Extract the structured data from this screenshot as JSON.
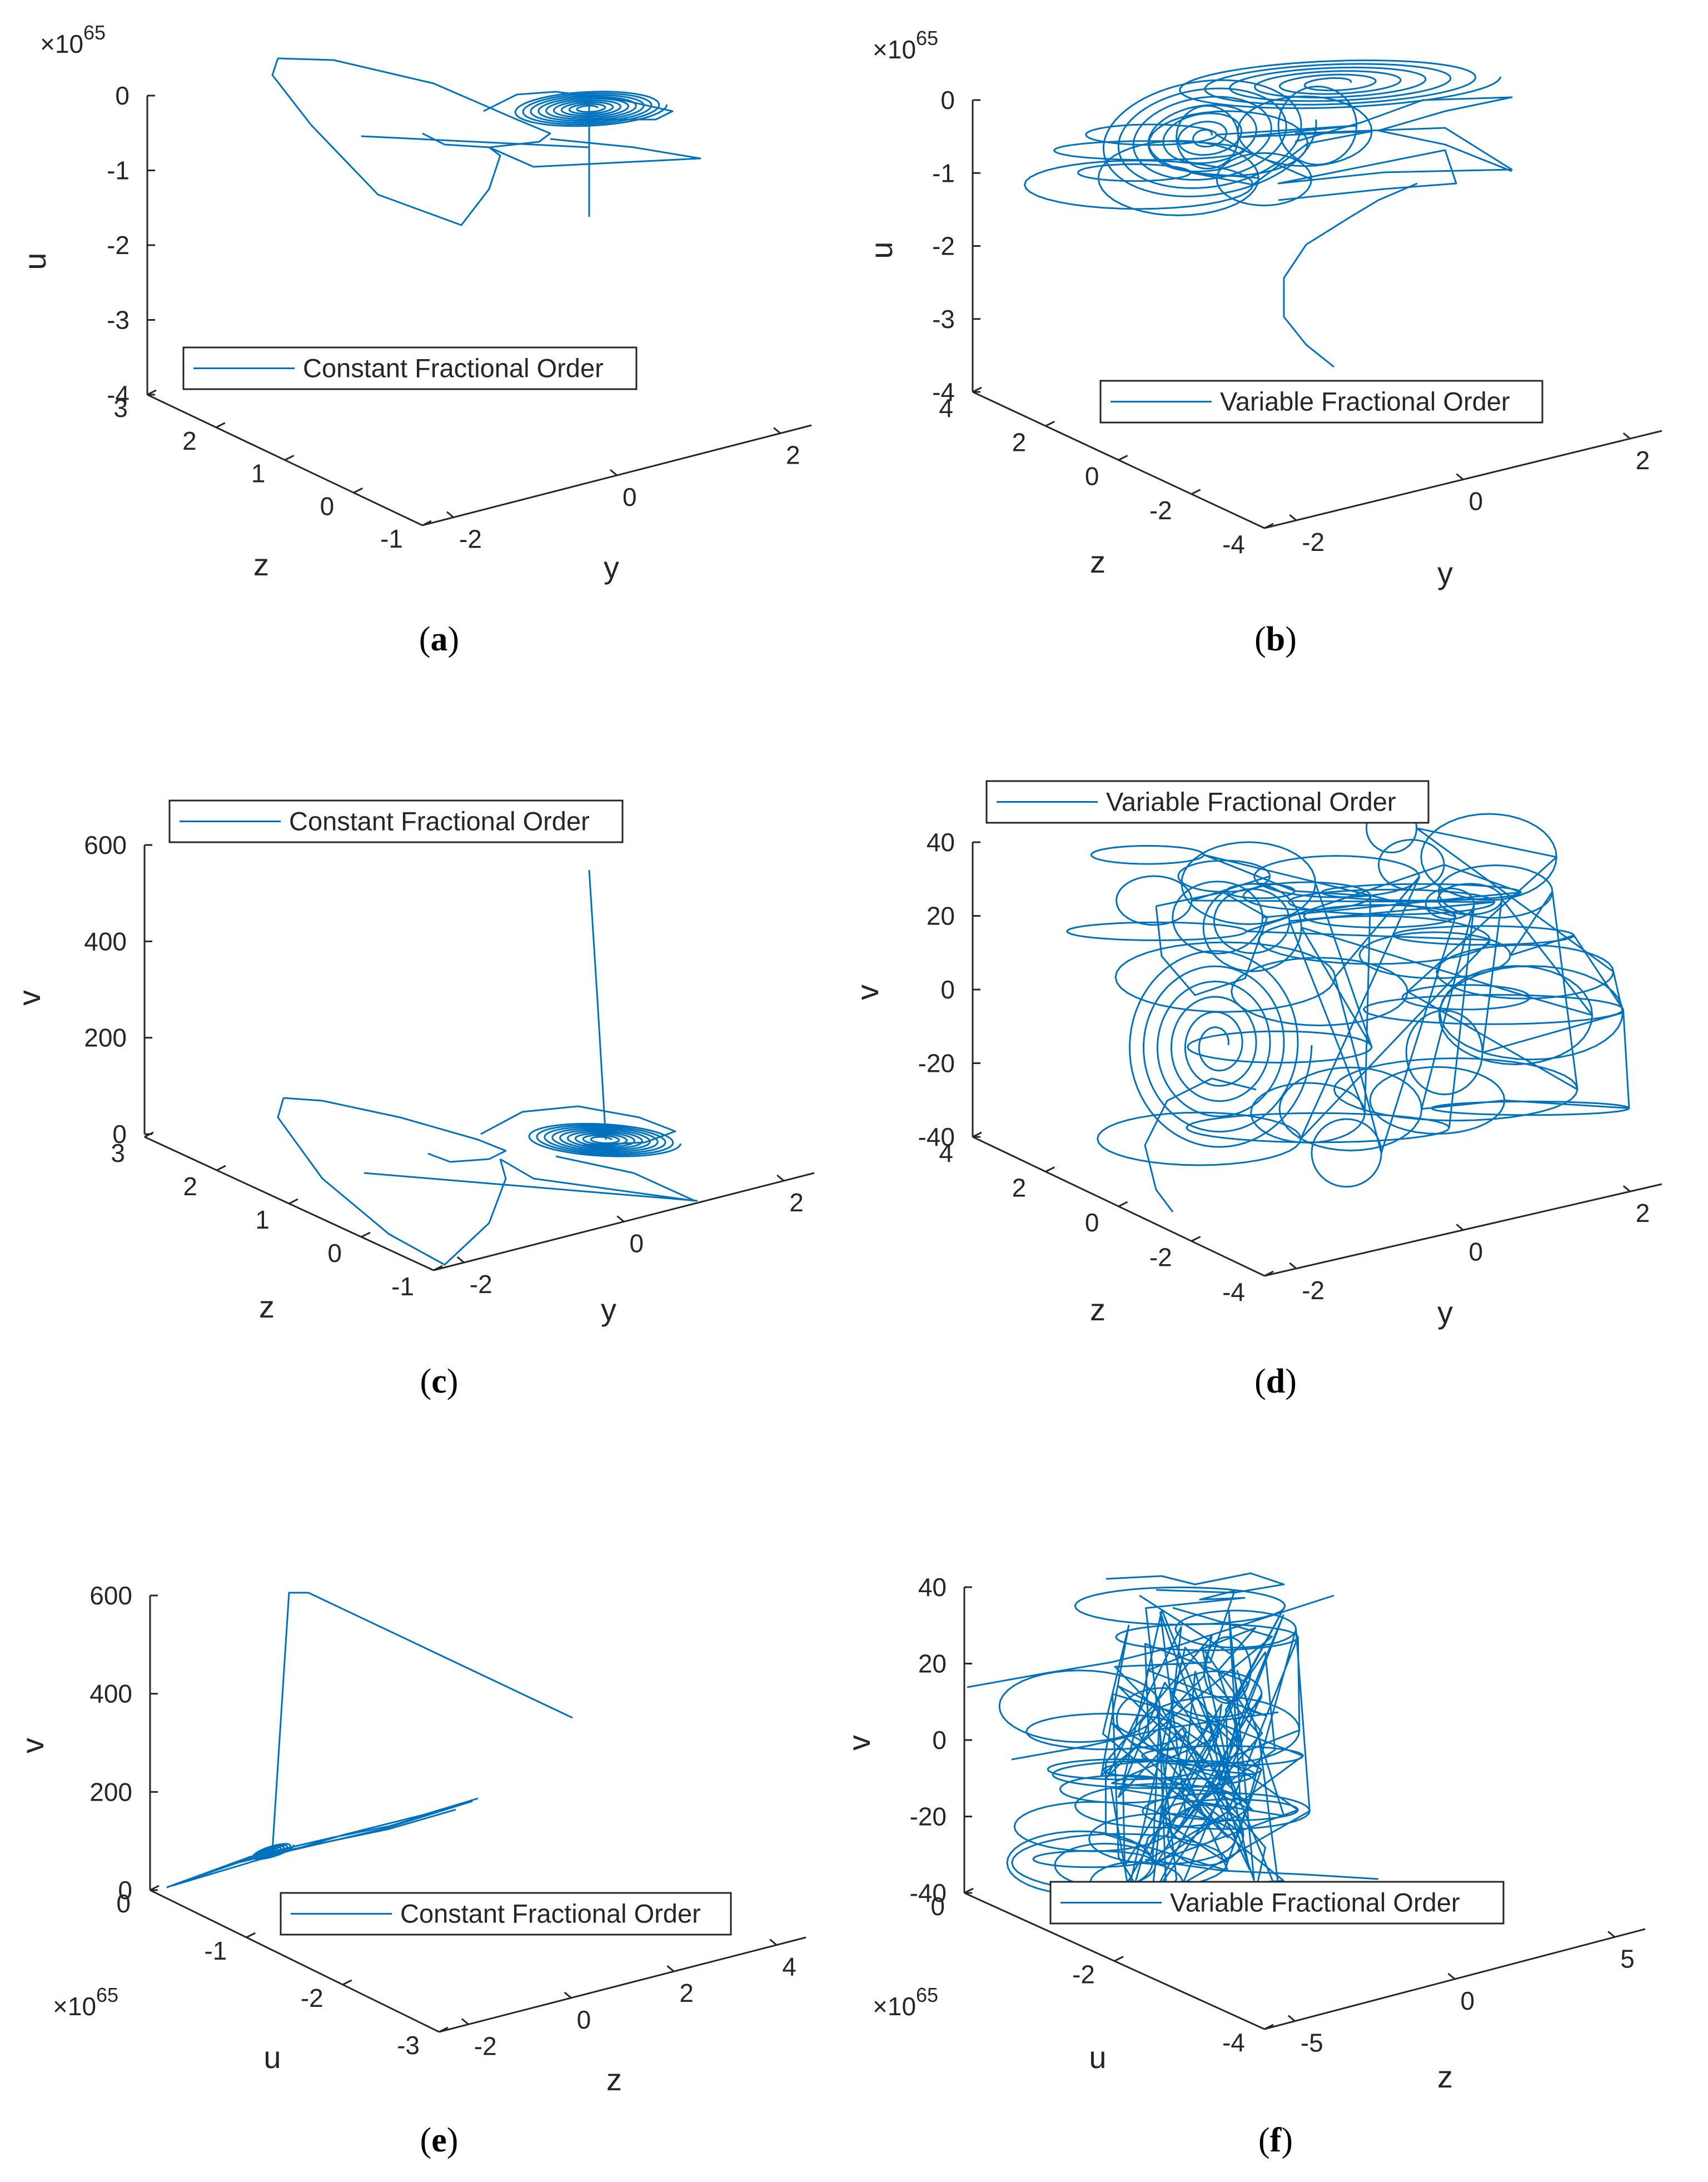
{
  "colors": {
    "series": "#0072BD",
    "axis": "#262626",
    "background": "#ffffff"
  },
  "chart_data": [
    {
      "id": "a",
      "type": "line",
      "projection": "3d",
      "caption": "a",
      "axes": {
        "x": {
          "label": "y",
          "ticks": [
            "-2",
            "0",
            "2"
          ]
        },
        "y": {
          "label": "z",
          "ticks": [
            "3",
            "2",
            "1",
            "0",
            "-1"
          ]
        },
        "z": {
          "label": "u",
          "ticks": [
            "0",
            "-1",
            "-2",
            "-3",
            "-4"
          ],
          "exponent": "65"
        }
      },
      "legend": {
        "label": "Constant Fractional Order",
        "placement": "center-left"
      },
      "series": [
        {
          "trajectory": "constant-order-attractor"
        }
      ]
    },
    {
      "id": "b",
      "type": "line",
      "projection": "3d",
      "caption": "b",
      "axes": {
        "x": {
          "label": "y",
          "ticks": [
            "-2",
            "0",
            "2"
          ]
        },
        "y": {
          "label": "z",
          "ticks": [
            "4",
            "2",
            "0",
            "-2",
            "-4"
          ]
        },
        "z": {
          "label": "u",
          "ticks": [
            "0",
            "-1",
            "-2",
            "-3",
            "-4"
          ],
          "exponent": "65"
        }
      },
      "legend": {
        "label": "Variable Fractional Order",
        "placement": "bottom-right"
      },
      "series": [
        {
          "trajectory": "variable-order-attractor"
        }
      ]
    },
    {
      "id": "c",
      "type": "line",
      "projection": "3d",
      "caption": "c",
      "axes": {
        "x": {
          "label": "y",
          "ticks": [
            "-2",
            "0",
            "2"
          ]
        },
        "y": {
          "label": "z",
          "ticks": [
            "3",
            "2",
            "1",
            "0",
            "-1"
          ]
        },
        "z": {
          "label": "v",
          "ticks": [
            "600",
            "400",
            "200",
            "0"
          ]
        }
      },
      "legend": {
        "label": "Constant Fractional Order",
        "placement": "top-left"
      },
      "series": [
        {
          "trajectory": "constant-order-attractor"
        }
      ]
    },
    {
      "id": "d",
      "type": "line",
      "projection": "3d",
      "caption": "d",
      "axes": {
        "x": {
          "label": "y",
          "ticks": [
            "-2",
            "0",
            "2"
          ]
        },
        "y": {
          "label": "z",
          "ticks": [
            "4",
            "2",
            "0",
            "-2",
            "-4"
          ]
        },
        "z": {
          "label": "v",
          "ticks": [
            "40",
            "20",
            "0",
            "-20",
            "-40"
          ]
        }
      },
      "legend": {
        "label": "Variable Fractional Order",
        "placement": "top"
      },
      "series": [
        {
          "trajectory": "variable-order-attractor"
        }
      ]
    },
    {
      "id": "e",
      "type": "line",
      "projection": "3d",
      "caption": "e",
      "axes": {
        "x": {
          "label": "z",
          "ticks": [
            "-2",
            "0",
            "2",
            "4"
          ]
        },
        "y": {
          "label": "u",
          "ticks": [
            "0",
            "-1",
            "-2",
            "-3"
          ],
          "exponent": "65"
        },
        "z": {
          "label": "v",
          "ticks": [
            "600",
            "400",
            "200",
            "0"
          ]
        }
      },
      "legend": {
        "label": "Constant Fractional Order",
        "placement": "bottom-right"
      },
      "series": [
        {
          "trajectory": "constant-order-attractor"
        }
      ]
    },
    {
      "id": "f",
      "type": "line",
      "projection": "3d",
      "caption": "f",
      "axes": {
        "x": {
          "label": "z",
          "ticks": [
            "-5",
            "0",
            "5"
          ]
        },
        "y": {
          "label": "u",
          "ticks": [
            "0",
            "-2",
            "-4"
          ],
          "exponent": "65"
        },
        "z": {
          "label": "v",
          "ticks": [
            "40",
            "20",
            "0",
            "-20",
            "-40"
          ]
        }
      },
      "legend": {
        "label": "Variable Fractional Order",
        "placement": "bottom-right"
      },
      "series": [
        {
          "trajectory": "variable-order-attractor"
        }
      ]
    }
  ]
}
